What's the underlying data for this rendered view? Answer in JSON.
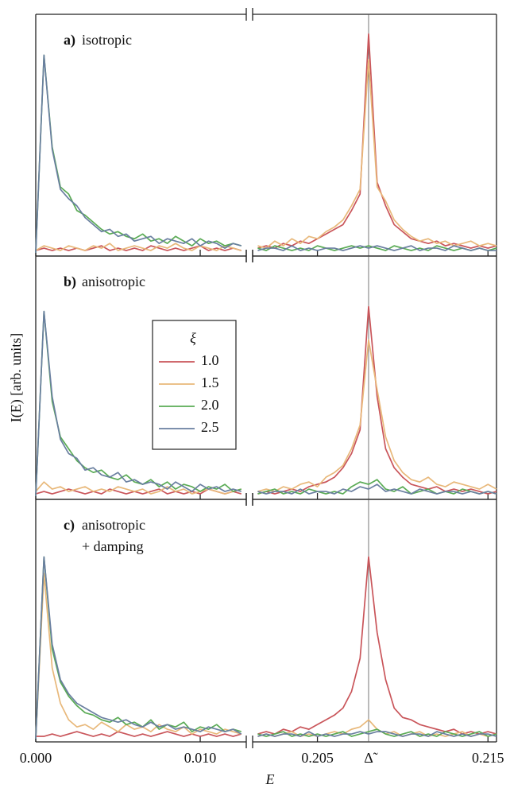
{
  "ylabel": "I(E) [arb. units]",
  "xlabel": "E",
  "chart_data": [
    {
      "type": "line",
      "panel_label": "a)",
      "annotation": [
        "isotropic"
      ],
      "xlim": [
        0,
        0.2155
      ],
      "xbreak": [
        0.0128,
        0.2012
      ],
      "ylim": [
        0,
        1
      ],
      "x": [
        0,
        0.0005,
        0.001,
        0.0015,
        0.002,
        0.0025,
        0.003,
        0.0035,
        0.004,
        0.0045,
        0.005,
        0.0055,
        0.006,
        0.0065,
        0.007,
        0.0075,
        0.008,
        0.0085,
        0.009,
        0.0095,
        0.01,
        0.0105,
        0.011,
        0.0115,
        0.012,
        0.0125,
        0.2015,
        0.202,
        0.2025,
        0.203,
        0.2035,
        0.204,
        0.2045,
        0.205,
        0.2055,
        0.206,
        0.2065,
        0.207,
        0.2075,
        0.208,
        0.2085,
        0.209,
        0.2095,
        0.21,
        0.2105,
        0.211,
        0.2115,
        0.212,
        0.2125,
        0.213,
        0.2135,
        0.214,
        0.2145,
        0.215,
        0.2155
      ],
      "series": [
        {
          "color": "#c9555a",
          "values": [
            0.01,
            0.02,
            0.01,
            0.02,
            0.01,
            0.02,
            0.01,
            0.02,
            0.03,
            0.01,
            0.02,
            0.01,
            0.02,
            0.01,
            0.03,
            0.02,
            0.01,
            0.02,
            0.01,
            0.02,
            0.03,
            0.01,
            0.02,
            0.01,
            0.02,
            0.01,
            0.02,
            0.03,
            0.02,
            0.04,
            0.03,
            0.05,
            0.04,
            0.06,
            0.08,
            0.1,
            0.12,
            0.18,
            0.25,
            0.93,
            0.3,
            0.2,
            0.12,
            0.09,
            0.06,
            0.05,
            0.04,
            0.05,
            0.03,
            0.04,
            0.03,
            0.02,
            0.03,
            0.02,
            0.03
          ]
        },
        {
          "color": "#e8b87a",
          "values": [
            0.01,
            0.03,
            0.02,
            0.01,
            0.03,
            0.02,
            0.01,
            0.03,
            0.02,
            0.04,
            0.01,
            0.02,
            0.03,
            0.02,
            0.01,
            0.03,
            0.02,
            0.04,
            0.02,
            0.01,
            0.03,
            0.02,
            0.01,
            0.03,
            0.02,
            0.01,
            0.03,
            0.02,
            0.05,
            0.03,
            0.06,
            0.04,
            0.07,
            0.06,
            0.09,
            0.11,
            0.14,
            0.2,
            0.27,
            0.82,
            0.28,
            0.22,
            0.14,
            0.1,
            0.07,
            0.05,
            0.06,
            0.04,
            0.05,
            0.03,
            0.04,
            0.05,
            0.03,
            0.04,
            0.03
          ]
        },
        {
          "color": "#5aab55",
          "values": [
            0,
            0.84,
            0.45,
            0.28,
            0.25,
            0.18,
            0.16,
            0.13,
            0.1,
            0.08,
            0.09,
            0.07,
            0.06,
            0.08,
            0.05,
            0.06,
            0.04,
            0.07,
            0.05,
            0.03,
            0.06,
            0.04,
            0.05,
            0.03,
            0.04,
            0.03,
            0.02,
            0.01,
            0.03,
            0.02,
            0.01,
            0.02,
            0.01,
            0.03,
            0.02,
            0.01,
            0.02,
            0.03,
            0.02,
            0.03,
            0.02,
            0.01,
            0.03,
            0.02,
            0.01,
            0.02,
            0.01,
            0.03,
            0.02,
            0.01,
            0.02,
            0.01,
            0.02,
            0.01,
            0.02
          ]
        },
        {
          "color": "#6a7fa0",
          "values": [
            0,
            0.84,
            0.44,
            0.27,
            0.23,
            0.2,
            0.15,
            0.12,
            0.09,
            0.1,
            0.07,
            0.08,
            0.05,
            0.06,
            0.07,
            0.04,
            0.06,
            0.05,
            0.04,
            0.06,
            0.03,
            0.05,
            0.04,
            0.02,
            0.04,
            0.03,
            0.01,
            0.02,
            0.02,
            0.01,
            0.03,
            0.01,
            0.02,
            0.01,
            0.02,
            0.02,
            0.01,
            0.02,
            0.03,
            0.02,
            0.03,
            0.02,
            0.01,
            0.02,
            0.03,
            0.01,
            0.02,
            0.02,
            0.01,
            0.03,
            0.02,
            0.01,
            0.02,
            0.01,
            0.01
          ]
        }
      ]
    },
    {
      "type": "line",
      "panel_label": "b)",
      "annotation": [
        "anisotropic"
      ],
      "xlim": [
        0,
        0.2155
      ],
      "xbreak": [
        0.0128,
        0.2012
      ],
      "ylim": [
        0,
        1
      ],
      "legend": true,
      "legend_title": "ξ",
      "x": [
        0,
        0.0005,
        0.001,
        0.0015,
        0.002,
        0.0025,
        0.003,
        0.0035,
        0.004,
        0.0045,
        0.005,
        0.0055,
        0.006,
        0.0065,
        0.007,
        0.0075,
        0.008,
        0.0085,
        0.009,
        0.0095,
        0.01,
        0.0105,
        0.011,
        0.0115,
        0.012,
        0.0125,
        0.2015,
        0.202,
        0.2025,
        0.203,
        0.2035,
        0.204,
        0.2045,
        0.205,
        0.2055,
        0.206,
        0.2065,
        0.207,
        0.2075,
        0.208,
        0.2085,
        0.209,
        0.2095,
        0.21,
        0.2105,
        0.211,
        0.2115,
        0.212,
        0.2125,
        0.213,
        0.2135,
        0.214,
        0.2145,
        0.215,
        0.2155
      ],
      "series": [
        {
          "name": "1.0",
          "color": "#c9555a",
          "values": [
            0.01,
            0.02,
            0.01,
            0.02,
            0.03,
            0.02,
            0.01,
            0.02,
            0.01,
            0.03,
            0.02,
            0.01,
            0.02,
            0.01,
            0.02,
            0.03,
            0.01,
            0.02,
            0.01,
            0.02,
            0.01,
            0.03,
            0.02,
            0.01,
            0.02,
            0.01,
            0.01,
            0.02,
            0.01,
            0.02,
            0.03,
            0.02,
            0.04,
            0.05,
            0.06,
            0.08,
            0.12,
            0.18,
            0.28,
            0.8,
            0.42,
            0.2,
            0.12,
            0.08,
            0.05,
            0.04,
            0.03,
            0.04,
            0.02,
            0.03,
            0.02,
            0.03,
            0.02,
            0.01,
            0.02
          ]
        },
        {
          "name": "1.5",
          "color": "#e8b87a",
          "values": [
            0.02,
            0.06,
            0.03,
            0.04,
            0.02,
            0.03,
            0.04,
            0.02,
            0.03,
            0.02,
            0.04,
            0.03,
            0.02,
            0.03,
            0.01,
            0.02,
            0.04,
            0.02,
            0.03,
            0.01,
            0.02,
            0.03,
            0.02,
            0.01,
            0.02,
            0.03,
            0.02,
            0.03,
            0.02,
            0.04,
            0.03,
            0.05,
            0.06,
            0.04,
            0.08,
            0.1,
            0.13,
            0.2,
            0.3,
            0.66,
            0.45,
            0.25,
            0.15,
            0.1,
            0.07,
            0.06,
            0.08,
            0.05,
            0.04,
            0.06,
            0.05,
            0.04,
            0.03,
            0.05,
            0.03
          ]
        },
        {
          "name": "2.0",
          "color": "#5aab55",
          "values": [
            0,
            0.78,
            0.4,
            0.25,
            0.2,
            0.15,
            0.12,
            0.1,
            0.11,
            0.08,
            0.07,
            0.09,
            0.06,
            0.05,
            0.07,
            0.04,
            0.06,
            0.03,
            0.05,
            0.04,
            0.02,
            0.04,
            0.03,
            0.05,
            0.02,
            0.03,
            0.01,
            0.02,
            0.03,
            0.01,
            0.02,
            0.01,
            0.03,
            0.02,
            0.01,
            0.02,
            0.01,
            0.04,
            0.06,
            0.05,
            0.07,
            0.03,
            0.02,
            0.04,
            0.01,
            0.02,
            0.03,
            0.01,
            0.02,
            0.01,
            0.03,
            0.02,
            0.01,
            0.02,
            0.01
          ]
        },
        {
          "name": "2.5",
          "color": "#6a7fa0",
          "values": [
            0,
            0.78,
            0.42,
            0.24,
            0.18,
            0.16,
            0.11,
            0.12,
            0.09,
            0.08,
            0.1,
            0.06,
            0.07,
            0.05,
            0.06,
            0.05,
            0.03,
            0.06,
            0.04,
            0.02,
            0.05,
            0.03,
            0.04,
            0.02,
            0.03,
            0.02,
            0.02,
            0.01,
            0.02,
            0.02,
            0.01,
            0.03,
            0.01,
            0.02,
            0.02,
            0.01,
            0.03,
            0.02,
            0.04,
            0.03,
            0.05,
            0.02,
            0.03,
            0.02,
            0.01,
            0.03,
            0.02,
            0.01,
            0.02,
            0.02,
            0.01,
            0.02,
            0.01,
            0.02,
            0.01
          ]
        }
      ]
    },
    {
      "type": "line",
      "panel_label": "c)",
      "annotation": [
        "anisotropic",
        "+ damping"
      ],
      "xlim": [
        0,
        0.2155
      ],
      "xbreak": [
        0.0128,
        0.2012
      ],
      "ylim": [
        0,
        1
      ],
      "xticks": [
        {
          "value": 0,
          "label": "0.000"
        },
        {
          "value": 0.01,
          "label": "0.010"
        },
        0.205,
        {
          "value": 0.208,
          "label": "Δ̃"
        },
        0.215
      ],
      "x": [
        0,
        0.0005,
        0.001,
        0.0015,
        0.002,
        0.0025,
        0.003,
        0.0035,
        0.004,
        0.0045,
        0.005,
        0.0055,
        0.006,
        0.0065,
        0.007,
        0.0075,
        0.008,
        0.0085,
        0.009,
        0.0095,
        0.01,
        0.0105,
        0.011,
        0.0115,
        0.012,
        0.0125,
        0.2015,
        0.202,
        0.2025,
        0.203,
        0.2035,
        0.204,
        0.2045,
        0.205,
        0.2055,
        0.206,
        0.2065,
        0.207,
        0.2075,
        0.208,
        0.2085,
        0.209,
        0.2095,
        0.21,
        0.2105,
        0.211,
        0.2115,
        0.212,
        0.2125,
        0.213,
        0.2135,
        0.214,
        0.2145,
        0.215,
        0.2155
      ],
      "series": [
        {
          "color": "#c9555a",
          "values": [
            0.01,
            0.01,
            0.02,
            0.01,
            0.02,
            0.03,
            0.02,
            0.01,
            0.02,
            0.01,
            0.03,
            0.02,
            0.01,
            0.02,
            0.01,
            0.02,
            0.03,
            0.02,
            0.01,
            0.02,
            0.01,
            0.02,
            0.01,
            0.02,
            0.01,
            0.02,
            0.02,
            0.03,
            0.02,
            0.04,
            0.03,
            0.05,
            0.04,
            0.06,
            0.08,
            0.1,
            0.13,
            0.2,
            0.34,
            0.77,
            0.45,
            0.25,
            0.13,
            0.09,
            0.08,
            0.06,
            0.05,
            0.04,
            0.03,
            0.04,
            0.02,
            0.03,
            0.02,
            0.03,
            0.02
          ]
        },
        {
          "color": "#e8b87a",
          "values": [
            0,
            0.7,
            0.3,
            0.15,
            0.08,
            0.05,
            0.06,
            0.04,
            0.07,
            0.05,
            0.03,
            0.06,
            0.04,
            0.05,
            0.03,
            0.06,
            0.04,
            0.03,
            0.05,
            0.02,
            0.04,
            0.03,
            0.02,
            0.04,
            0.03,
            0.02,
            0.01,
            0.02,
            0.01,
            0.02,
            0.03,
            0.01,
            0.02,
            0.01,
            0.02,
            0.03,
            0.02,
            0.04,
            0.05,
            0.08,
            0.04,
            0.02,
            0.03,
            0.01,
            0.02,
            0.03,
            0.01,
            0.02,
            0.01,
            0.02,
            0.03,
            0.01,
            0.02,
            0.01,
            0.02
          ]
        },
        {
          "color": "#5aab55",
          "values": [
            0,
            0.77,
            0.38,
            0.24,
            0.18,
            0.14,
            0.11,
            0.1,
            0.08,
            0.07,
            0.09,
            0.06,
            0.07,
            0.05,
            0.08,
            0.04,
            0.06,
            0.05,
            0.07,
            0.03,
            0.05,
            0.04,
            0.06,
            0.03,
            0.04,
            0.03,
            0.02,
            0.01,
            0.02,
            0.03,
            0.01,
            0.02,
            0.01,
            0.02,
            0.01,
            0.02,
            0.03,
            0.01,
            0.02,
            0.03,
            0.04,
            0.02,
            0.01,
            0.02,
            0.03,
            0.01,
            0.02,
            0.01,
            0.03,
            0.02,
            0.01,
            0.02,
            0.03,
            0.01,
            0.02
          ]
        },
        {
          "color": "#6a7fa0",
          "values": [
            0,
            0.77,
            0.4,
            0.25,
            0.19,
            0.15,
            0.13,
            0.11,
            0.09,
            0.08,
            0.07,
            0.08,
            0.06,
            0.05,
            0.07,
            0.05,
            0.06,
            0.04,
            0.05,
            0.04,
            0.03,
            0.05,
            0.04,
            0.03,
            0.04,
            0.02,
            0.01,
            0.02,
            0.01,
            0.02,
            0.02,
            0.01,
            0.03,
            0.01,
            0.02,
            0.01,
            0.02,
            0.02,
            0.03,
            0.02,
            0.03,
            0.03,
            0.02,
            0.01,
            0.02,
            0.02,
            0.01,
            0.03,
            0.02,
            0.01,
            0.02,
            0.01,
            0.02,
            0.02,
            0.01
          ]
        }
      ]
    }
  ]
}
